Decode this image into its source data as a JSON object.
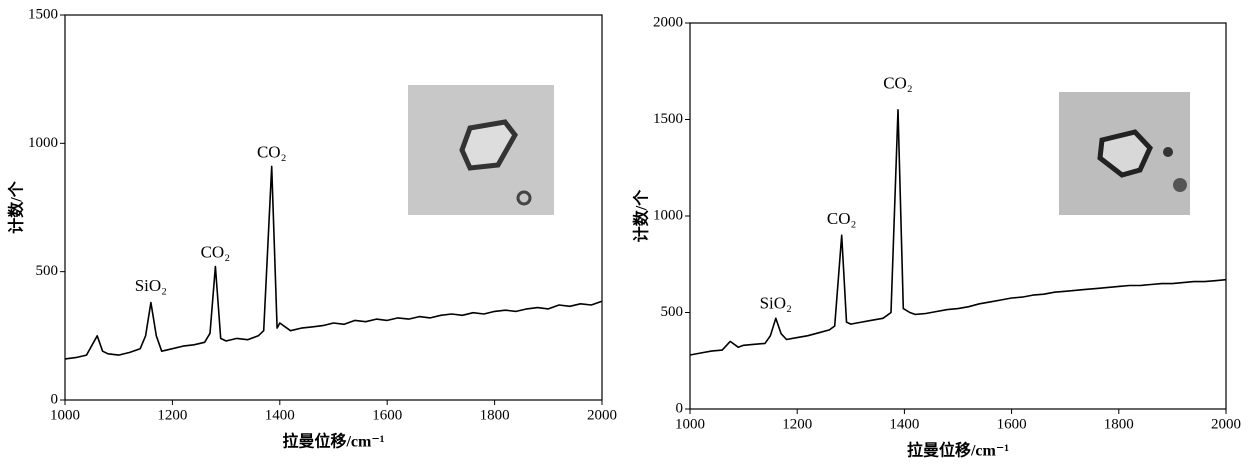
{
  "chart_data": [
    {
      "type": "line",
      "x_label": "拉曼位移/cm⁻¹",
      "y_label": "计数/个",
      "annotations": [
        "SiO₂",
        "CO₂",
        "CO₂"
      ],
      "xlim": [
        1000,
        2000
      ],
      "xticks": [
        1000,
        1200,
        1400,
        1600,
        1800,
        2000
      ],
      "ylim": [
        0,
        1500
      ],
      "yticks": [
        0,
        500,
        1000,
        1500
      ],
      "x": [
        1000,
        1020,
        1040,
        1060,
        1070,
        1080,
        1100,
        1120,
        1140,
        1150,
        1160,
        1170,
        1180,
        1200,
        1220,
        1240,
        1260,
        1270,
        1280,
        1290,
        1300,
        1320,
        1340,
        1360,
        1370,
        1385,
        1395,
        1400,
        1420,
        1440,
        1460,
        1480,
        1500,
        1520,
        1540,
        1560,
        1580,
        1600,
        1620,
        1640,
        1660,
        1680,
        1700,
        1720,
        1740,
        1760,
        1780,
        1800,
        1820,
        1840,
        1860,
        1880,
        1900,
        1920,
        1940,
        1960,
        1980,
        2000
      ],
      "series": [
        {
          "color": "#000000",
          "values": [
            160,
            165,
            175,
            250,
            190,
            180,
            175,
            185,
            200,
            250,
            380,
            250,
            190,
            200,
            210,
            215,
            225,
            260,
            520,
            240,
            230,
            240,
            235,
            250,
            270,
            910,
            280,
            300,
            270,
            280,
            285,
            290,
            300,
            295,
            310,
            305,
            315,
            310,
            320,
            315,
            325,
            320,
            330,
            335,
            330,
            340,
            335,
            345,
            350,
            345,
            355,
            360,
            355,
            370,
            365,
            375,
            370,
            385
          ]
        }
      ]
    },
    {
      "type": "line",
      "x_label": "拉曼位移/cm⁻¹",
      "y_label": "计数/个",
      "annotations": [
        "SiO₂",
        "CO₂",
        "CO₂"
      ],
      "xlim": [
        1000,
        2000
      ],
      "xticks": [
        1000,
        1200,
        1400,
        1600,
        1800,
        2000
      ],
      "ylim": [
        0,
        2000
      ],
      "yticks": [
        0,
        500,
        1000,
        1500,
        2000
      ],
      "x": [
        1000,
        1020,
        1040,
        1060,
        1075,
        1090,
        1100,
        1120,
        1140,
        1150,
        1160,
        1170,
        1180,
        1200,
        1220,
        1240,
        1260,
        1270,
        1283,
        1292,
        1300,
        1320,
        1340,
        1360,
        1375,
        1388,
        1398,
        1410,
        1420,
        1440,
        1460,
        1480,
        1500,
        1520,
        1540,
        1560,
        1580,
        1600,
        1620,
        1640,
        1660,
        1680,
        1700,
        1720,
        1740,
        1760,
        1780,
        1800,
        1820,
        1840,
        1860,
        1880,
        1900,
        1920,
        1940,
        1960,
        1980,
        2000
      ],
      "series": [
        {
          "color": "#000000",
          "values": [
            280,
            290,
            300,
            305,
            350,
            320,
            330,
            335,
            340,
            380,
            470,
            390,
            360,
            370,
            380,
            395,
            410,
            430,
            900,
            450,
            440,
            450,
            460,
            470,
            500,
            1550,
            520,
            500,
            490,
            495,
            505,
            515,
            520,
            530,
            545,
            555,
            565,
            575,
            580,
            590,
            595,
            605,
            610,
            615,
            620,
            625,
            630,
            635,
            640,
            640,
            645,
            650,
            650,
            655,
            660,
            660,
            665,
            670
          ]
        }
      ]
    }
  ]
}
